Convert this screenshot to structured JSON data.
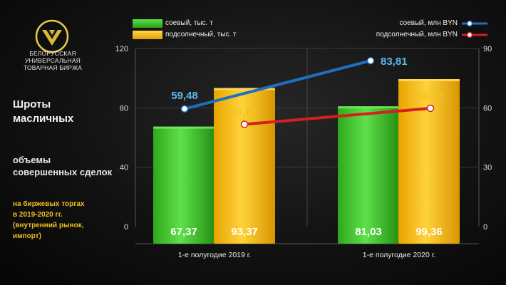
{
  "org": {
    "lines": [
      "БЕЛОРУССКАЯ",
      "УНИВЕРСАЛЬНАЯ",
      "ТОВАРНАЯ БИРЖА"
    ]
  },
  "sidebar": {
    "title_line1": "Шроты",
    "title_line2": "масличных",
    "subtitle_line1": "объемы",
    "subtitle_line2": "совершенных сделок",
    "note_line1": "на биржевых торгах",
    "note_line2": "в 2019-2020 гг.",
    "note_line3": "(внутренний рынок,",
    "note_line4": "импорт)"
  },
  "legend": {
    "soy_bar": "соевый, тыс. т",
    "sun_bar": "подсолнечный, тыс. т",
    "soy_line": "соевый, млн BYN",
    "sun_line": "подсолнечный, млн BYN"
  },
  "colors": {
    "soy_bar": "#3fc42a",
    "sun_bar": "#f5b800",
    "soy_line": "#1f6fc0",
    "sun_line": "#d42020",
    "soy_label": "#5ab8f0",
    "sun_label": "#f2c417"
  },
  "chart_data": {
    "type": "bar",
    "categories": [
      "1-е полугодие 2019 г.",
      "1-е полугодие 2020 г."
    ],
    "y_left": {
      "ticks": [
        0,
        40,
        80,
        120
      ],
      "tick_labels": [
        "0",
        "40",
        "80",
        "120"
      ],
      "ylim": [
        0,
        120
      ]
    },
    "y_right": {
      "ticks": [
        0,
        30,
        60,
        90
      ],
      "tick_labels": [
        "0",
        "30",
        "60",
        "90"
      ],
      "ylim": [
        0,
        90
      ]
    },
    "bar_series": [
      {
        "name": "соевый, тыс. т",
        "values": [
          67.37,
          81.03
        ],
        "labels": [
          "67,37",
          "81,03"
        ]
      },
      {
        "name": "подсолнечный, тыс. т",
        "values": [
          93.37,
          99.36
        ],
        "labels": [
          "93,37",
          "99,36"
        ]
      }
    ],
    "line_series": [
      {
        "name": "соевый, млн BYN",
        "values": [
          59.48,
          83.81
        ],
        "labels": [
          "59,48",
          "83,81"
        ],
        "axis": "right"
      },
      {
        "name": "подсолнечный, млн BYN",
        "values": [
          51.67,
          59.77
        ],
        "labels": [
          "51,67",
          "59,77"
        ],
        "axis": "right"
      }
    ],
    "grid": true,
    "legend_position": "top"
  }
}
